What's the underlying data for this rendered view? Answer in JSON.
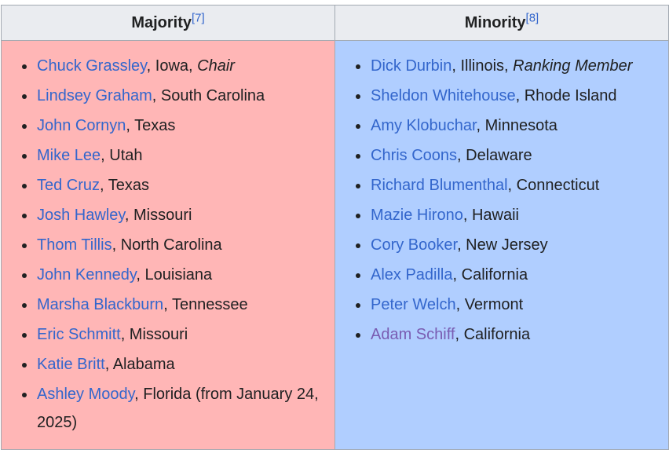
{
  "headers": {
    "majority": "Majority",
    "majority_ref": "[7]",
    "minority": "Minority",
    "minority_ref": "[8]"
  },
  "majority": [
    {
      "name": "Chuck Grassley",
      "detail": ", Iowa, ",
      "role": "Chair"
    },
    {
      "name": "Lindsey Graham",
      "detail": ", South Carolina"
    },
    {
      "name": "John Cornyn",
      "detail": ", Texas"
    },
    {
      "name": "Mike Lee",
      "detail": ", Utah"
    },
    {
      "name": "Ted Cruz",
      "detail": ", Texas"
    },
    {
      "name": "Josh Hawley",
      "detail": ", Missouri"
    },
    {
      "name": "Thom Tillis",
      "detail": ", North Carolina"
    },
    {
      "name": "John Kennedy",
      "detail": ", Louisiana"
    },
    {
      "name": "Marsha Blackburn",
      "detail": ", Tennessee"
    },
    {
      "name": "Eric Schmitt",
      "detail": ", Missouri"
    },
    {
      "name": "Katie Britt",
      "detail": ", Alabama"
    },
    {
      "name": "Ashley Moody",
      "detail": ", Florida (from January 24, 2025)"
    }
  ],
  "minority": [
    {
      "name": "Dick Durbin",
      "detail": ", Illinois, ",
      "role": "Ranking Member"
    },
    {
      "name": "Sheldon Whitehouse",
      "detail": ", Rhode Island"
    },
    {
      "name": "Amy Klobuchar",
      "detail": ", Minnesota"
    },
    {
      "name": "Chris Coons",
      "detail": ", Delaware"
    },
    {
      "name": "Richard Blumenthal",
      "detail": ", Connecticut"
    },
    {
      "name": "Mazie Hirono",
      "detail": ", Hawaii"
    },
    {
      "name": "Cory Booker",
      "detail": ", New Jersey"
    },
    {
      "name": "Alex Padilla",
      "detail": ", California"
    },
    {
      "name": "Peter Welch",
      "detail": ", Vermont"
    },
    {
      "name": "Adam Schiff",
      "detail": ", California",
      "visited": true
    }
  ]
}
